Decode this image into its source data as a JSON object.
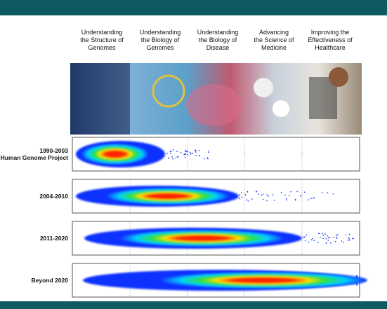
{
  "headers": [
    {
      "lines": [
        "Understanding",
        "the Structure of",
        "Genomes"
      ]
    },
    {
      "lines": [
        "Understanding",
        "the Biology of",
        "Genomes"
      ]
    },
    {
      "lines": [
        "Understanding",
        "the Biology of",
        "Disease"
      ]
    },
    {
      "lines": [
        "Advancing",
        "the Science of",
        "Medicine"
      ]
    },
    {
      "lines": [
        "Improving the",
        "Effectiveness of",
        "Healthcare"
      ]
    }
  ],
  "rows": [
    {
      "lines": [
        "1990-2003",
        "Human Genome Project"
      ]
    },
    {
      "lines": [
        "2004-2010"
      ]
    },
    {
      "lines": [
        "2011-2020"
      ]
    },
    {
      "lines": [
        "Beyond 2020"
      ]
    }
  ]
}
